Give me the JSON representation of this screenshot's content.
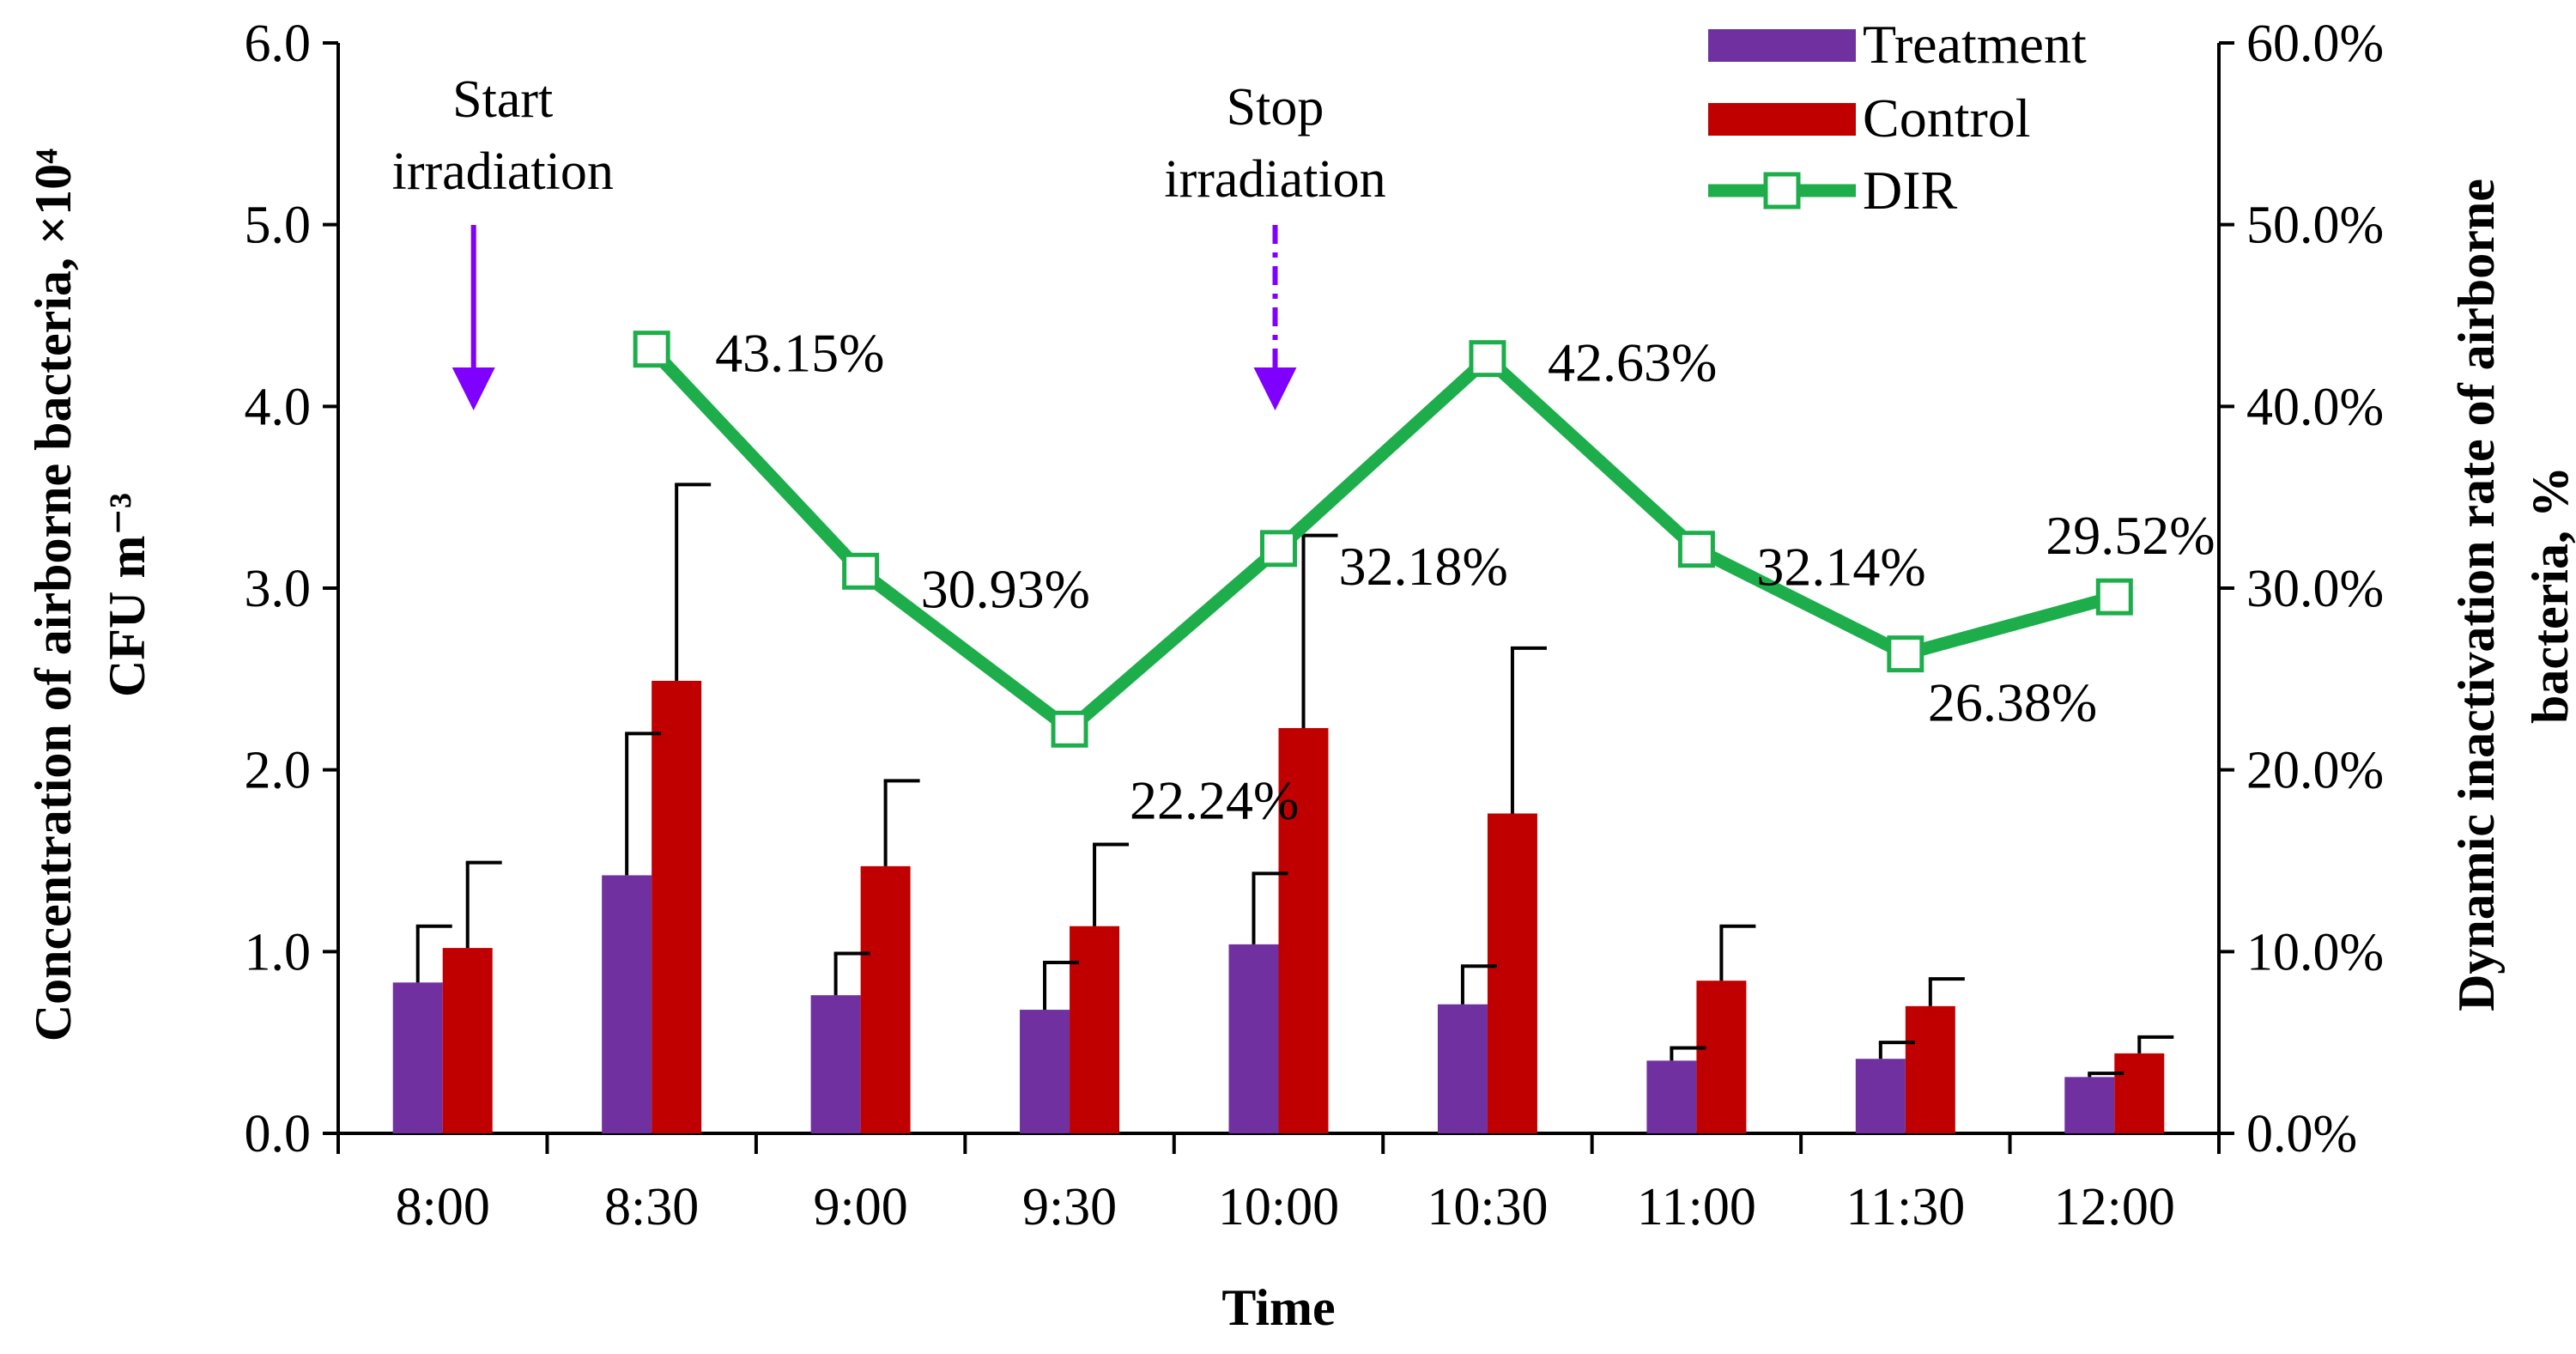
{
  "chart_data": {
    "type": "bar",
    "categories": [
      "8:00",
      "8:30",
      "9:00",
      "9:30",
      "10:00",
      "10:30",
      "11:00",
      "11:30",
      "12:00"
    ],
    "series": [
      {
        "name": "Treatment",
        "type": "bar",
        "axis": "left",
        "color": "#7030A0",
        "values": [
          0.83,
          1.42,
          0.76,
          0.68,
          1.04,
          0.71,
          0.4,
          0.41,
          0.31
        ],
        "error": [
          0.31,
          0.78,
          0.23,
          0.26,
          0.39,
          0.21,
          0.07,
          0.09,
          0.02
        ]
      },
      {
        "name": "Control",
        "type": "bar",
        "axis": "left",
        "color": "#C00000",
        "values": [
          1.02,
          2.49,
          1.47,
          1.14,
          2.23,
          1.76,
          0.84,
          0.7,
          0.44
        ],
        "error": [
          0.47,
          1.08,
          0.47,
          0.45,
          1.06,
          0.91,
          0.3,
          0.15,
          0.09
        ]
      },
      {
        "name": "DIR",
        "type": "line",
        "axis": "right",
        "color": "#1DAE4B",
        "x": [
          "8:30",
          "9:00",
          "9:30",
          "10:00",
          "10:30",
          "11:00",
          "11:30",
          "12:00"
        ],
        "values": [
          43.15,
          30.93,
          22.24,
          32.18,
          42.63,
          32.14,
          26.38,
          29.52
        ],
        "labels": [
          "43.15%",
          "30.93%",
          "22.24%",
          "32.18%",
          "42.63%",
          "32.14%",
          "26.38%",
          "29.52%"
        ]
      }
    ],
    "title": "",
    "xlabel": "Time",
    "ylabel_left": "Concentration of airborne bacteria, ×10⁴ CFU m⁻³",
    "ylabel_left_lines": [
      "Concentration of airborne bacteria, ×10⁴",
      "CFU m⁻³"
    ],
    "ylabel_right": "Dynamic inactivation rate of airborne bacteria, %",
    "ylabel_right_lines": [
      "Dynamic inactivation rate of airborne",
      "bacteria, %"
    ],
    "ylim_left": [
      0,
      6
    ],
    "ylim_right": [
      0,
      60
    ],
    "yticks_left": [
      "0.0",
      "1.0",
      "2.0",
      "3.0",
      "4.0",
      "5.0",
      "6.0"
    ],
    "yticks_right": [
      "0.0%",
      "10.0%",
      "20.0%",
      "30.0%",
      "40.0%",
      "50.0%",
      "60.0%"
    ],
    "grid": false,
    "legend": {
      "position": "top-right",
      "entries": [
        "Treatment",
        "Control",
        "DIR"
      ]
    },
    "annotations": [
      {
        "lines": [
          "Start",
          "irradiation"
        ],
        "at": "8:00",
        "arrow": "solid",
        "color": "#7F00FF"
      },
      {
        "lines": [
          "Stop",
          "irradiation"
        ],
        "at": "10:00",
        "arrow": "dashed",
        "color": "#7F00FF"
      }
    ]
  }
}
